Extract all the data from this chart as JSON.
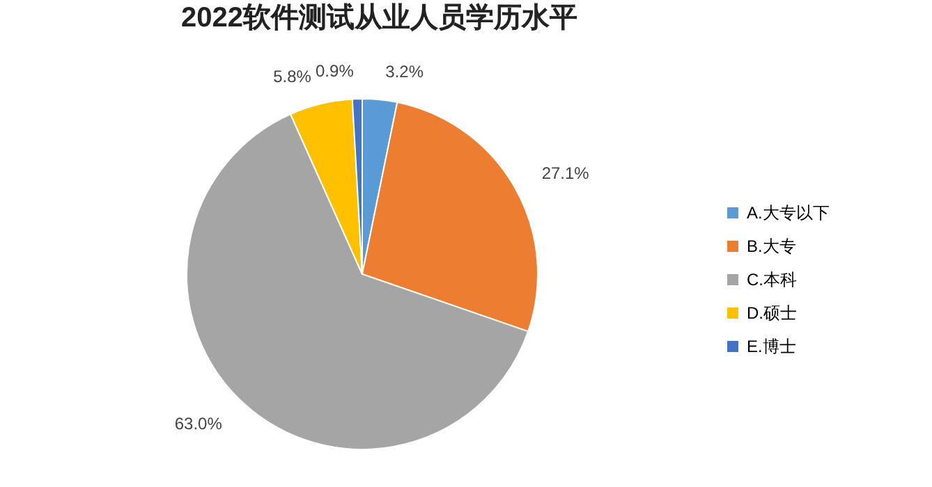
{
  "chart_data": {
    "type": "pie",
    "title": "2022软件测试从业人员学历水平",
    "categories": [
      "A.大专以下",
      "B.大专",
      "C.本科",
      "D.硕士",
      "E.博士"
    ],
    "values": [
      3.2,
      27.1,
      63.0,
      5.8,
      0.9
    ],
    "colors": [
      "#5b9bd5",
      "#ed7d31",
      "#a5a5a5",
      "#ffc000",
      "#4472c4"
    ],
    "value_labels": [
      "3.2%",
      "27.1%",
      "63.0%",
      "5.8%",
      "0.9%"
    ],
    "legend": "right"
  }
}
